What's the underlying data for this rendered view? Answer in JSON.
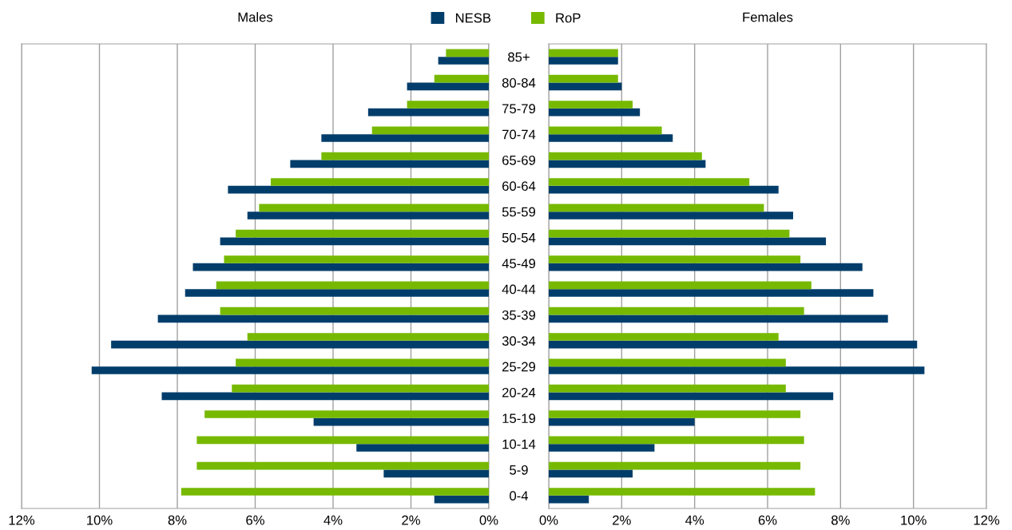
{
  "chart_data": [
    {
      "type": "bar",
      "orientation": "horizontal",
      "title": "Males",
      "legend": "top",
      "categories": [
        "85+",
        "80-84",
        "75-79",
        "70-74",
        "65-69",
        "60-64",
        "55-59",
        "50-54",
        "45-49",
        "40-44",
        "35-39",
        "30-34",
        "25-29",
        "20-24",
        "15-19",
        "10-14",
        "5-9",
        "0-4"
      ],
      "series": [
        {
          "name": "NESB",
          "color": "#003d6b",
          "values": [
            1.3,
            2.1,
            3.1,
            4.3,
            5.1,
            6.7,
            6.2,
            6.9,
            7.6,
            7.8,
            8.5,
            9.7,
            10.2,
            8.4,
            4.5,
            3.4,
            2.7,
            1.4
          ]
        },
        {
          "name": "RoP",
          "color": "#76b900",
          "values": [
            1.1,
            1.4,
            2.1,
            3.0,
            4.3,
            5.6,
            5.9,
            6.5,
            6.8,
            7.0,
            6.9,
            6.2,
            6.5,
            6.6,
            7.3,
            7.5,
            7.5,
            7.9
          ]
        }
      ],
      "xlim": [
        12,
        0
      ],
      "xticks": [
        {
          "value": 12,
          "label": "12%"
        },
        {
          "value": 10,
          "label": "10%"
        },
        {
          "value": 8,
          "label": "8%"
        },
        {
          "value": 6,
          "label": "6%"
        },
        {
          "value": 4,
          "label": "4%"
        },
        {
          "value": 2,
          "label": "2%"
        },
        {
          "value": 0,
          "label": "0%"
        }
      ],
      "grid": "x"
    },
    {
      "type": "bar",
      "orientation": "horizontal",
      "title": "Females",
      "tick_labels": "x",
      "series": [
        {
          "color": "#003d6b",
          "values": [
            1.9,
            2.0,
            2.5,
            3.4,
            4.3,
            6.3,
            6.7,
            7.6,
            8.6,
            8.9,
            9.3,
            10.1,
            10.3,
            7.8,
            4.0,
            2.9,
            2.3,
            1.1
          ]
        },
        {
          "color": "#76b900",
          "values": [
            1.9,
            1.9,
            2.3,
            3.1,
            4.2,
            5.5,
            5.9,
            6.6,
            6.9,
            7.2,
            7.0,
            6.3,
            6.5,
            6.5,
            6.9,
            7.0,
            6.9,
            7.3
          ]
        }
      ],
      "xlim": [
        0,
        12
      ],
      "xticks": [
        {
          "value": 0,
          "label": "0%"
        },
        {
          "value": 2,
          "label": "2%"
        },
        {
          "value": 4,
          "label": "4%"
        },
        {
          "value": 6,
          "label": "6%"
        },
        {
          "value": 8,
          "label": "8%"
        },
        {
          "value": 10,
          "label": "10%"
        },
        {
          "value": 12,
          "label": "12%"
        }
      ],
      "grid": "x"
    }
  ]
}
